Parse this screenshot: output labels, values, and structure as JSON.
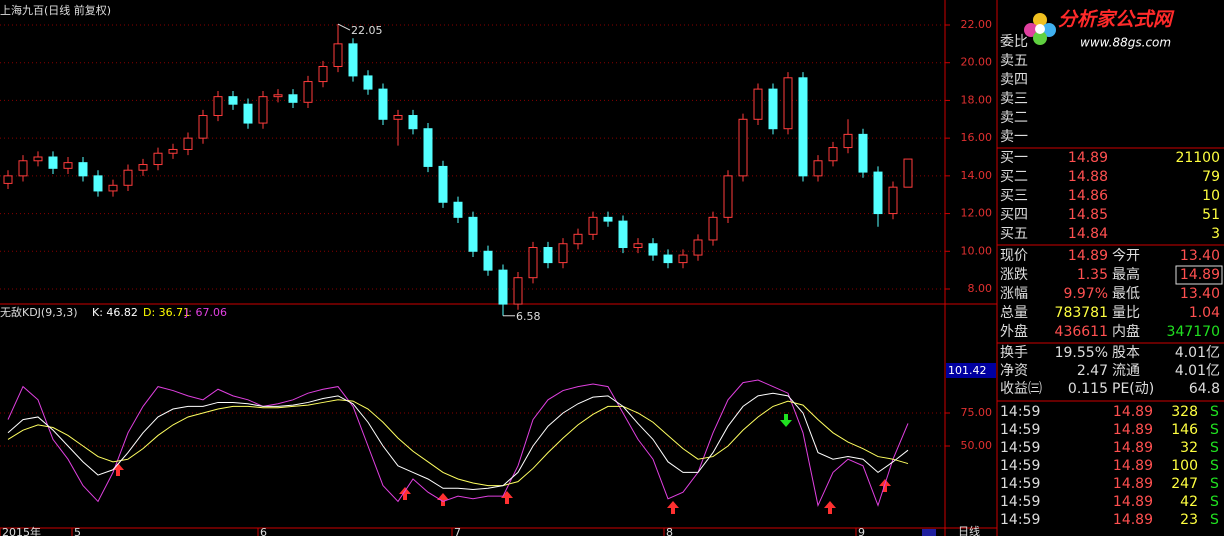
{
  "header": {
    "title": "上海九百(日线 前复权)"
  },
  "logo": {
    "name": "分析家公式网",
    "url": "www.88gs.com"
  },
  "price_chart": {
    "candles": {
      "open": [
        13.6,
        14.0,
        14.8,
        15.0,
        14.4,
        14.7,
        14.0,
        13.2,
        13.5,
        14.3,
        14.6,
        15.2,
        15.4,
        16.0,
        17.2,
        18.2,
        17.8,
        16.8,
        18.2,
        18.3,
        17.9,
        19.0,
        19.8,
        21.0,
        19.3,
        18.6,
        17.0,
        17.2,
        16.5,
        14.5,
        12.6,
        11.8,
        10.0,
        9.0,
        7.2,
        8.6,
        10.2,
        9.4,
        10.4,
        10.9,
        11.8,
        11.6,
        10.2,
        10.4,
        9.8,
        9.4,
        9.8,
        10.6,
        11.8,
        14.0,
        17.0,
        18.6,
        16.5,
        19.2,
        14.0,
        14.8,
        15.5,
        16.2,
        14.2,
        12.0,
        13.4
      ],
      "high": [
        14.3,
        15.1,
        15.3,
        15.3,
        15.0,
        15.0,
        14.3,
        13.8,
        14.6,
        14.9,
        15.5,
        15.7,
        16.3,
        17.5,
        18.5,
        18.5,
        18.1,
        18.5,
        18.6,
        18.6,
        19.3,
        20.1,
        22.05,
        21.3,
        19.6,
        18.9,
        17.5,
        17.5,
        16.8,
        14.8,
        12.9,
        12.1,
        10.3,
        9.3,
        8.9,
        10.5,
        10.5,
        10.7,
        11.2,
        12.1,
        12.1,
        11.9,
        10.7,
        10.7,
        10.1,
        10.1,
        10.9,
        12.1,
        14.3,
        17.3,
        18.9,
        18.9,
        19.5,
        19.5,
        15.1,
        15.8,
        17.0,
        16.5,
        14.5,
        13.7,
        14.89
      ],
      "low": [
        13.3,
        13.7,
        14.5,
        14.1,
        14.1,
        13.7,
        12.9,
        12.9,
        13.2,
        14.0,
        14.3,
        14.9,
        15.1,
        15.7,
        16.9,
        17.5,
        16.5,
        16.5,
        17.9,
        17.6,
        17.6,
        18.7,
        19.5,
        19.0,
        18.3,
        16.7,
        15.6,
        16.2,
        14.2,
        12.3,
        11.5,
        9.7,
        8.7,
        6.58,
        6.9,
        8.3,
        9.1,
        9.1,
        10.1,
        10.6,
        11.3,
        9.9,
        9.9,
        9.5,
        9.1,
        9.1,
        9.5,
        10.3,
        11.5,
        13.7,
        16.7,
        16.2,
        16.2,
        13.7,
        13.7,
        14.5,
        15.2,
        13.9,
        11.3,
        11.7,
        13.4
      ],
      "close": [
        14.0,
        14.8,
        15.0,
        14.4,
        14.7,
        14.0,
        13.2,
        13.5,
        14.3,
        14.6,
        15.2,
        15.4,
        16.0,
        17.2,
        18.2,
        17.8,
        16.8,
        18.2,
        18.3,
        17.9,
        19.0,
        19.8,
        21.0,
        19.3,
        18.6,
        17.0,
        17.2,
        16.5,
        14.5,
        12.6,
        11.8,
        10.0,
        9.0,
        7.2,
        8.6,
        10.2,
        9.4,
        10.4,
        10.9,
        11.8,
        11.6,
        10.2,
        10.4,
        9.8,
        9.4,
        9.8,
        10.6,
        11.8,
        14.0,
        17.0,
        18.6,
        16.5,
        19.2,
        14.0,
        14.8,
        15.5,
        16.2,
        14.2,
        12.0,
        13.4,
        14.89
      ]
    },
    "yticks": [
      {
        "value": 22,
        "label": "22.00"
      },
      {
        "value": 20,
        "label": "20.00"
      },
      {
        "value": 18,
        "label": "18.00"
      },
      {
        "value": 16,
        "label": "16.00"
      },
      {
        "value": 14,
        "label": "14.00"
      },
      {
        "value": 12,
        "label": "12.00"
      },
      {
        "value": 10,
        "label": "10.00"
      },
      {
        "value": 8,
        "label": "8.00"
      }
    ],
    "high_label": "22.05",
    "low_label": "6.58"
  },
  "kdj": {
    "title": "无敌KDJ(9,3,3)",
    "k_label": "K: 46.82",
    "d_label": "D: 36.71",
    "j_label": "J: 67.06",
    "current": "101.42",
    "k": [
      60,
      70,
      72,
      62,
      50,
      38,
      28,
      32,
      45,
      60,
      72,
      78,
      80,
      80,
      83,
      83,
      82,
      80,
      80,
      81,
      83,
      86,
      88,
      82,
      68,
      50,
      35,
      30,
      25,
      18,
      18,
      17,
      18,
      20,
      30,
      50,
      65,
      75,
      82,
      87,
      88,
      80,
      67,
      55,
      38,
      30,
      30,
      45,
      65,
      80,
      88,
      90,
      88,
      75,
      45,
      40,
      42,
      40,
      30,
      38,
      46.82
    ],
    "d": [
      55,
      62,
      66,
      64,
      58,
      50,
      42,
      38,
      40,
      48,
      58,
      66,
      72,
      75,
      78,
      80,
      80,
      79,
      79,
      80,
      81,
      83,
      85,
      84,
      78,
      68,
      56,
      46,
      38,
      30,
      25,
      22,
      20,
      20,
      23,
      33,
      45,
      56,
      66,
      74,
      80,
      80,
      75,
      68,
      58,
      48,
      40,
      42,
      50,
      62,
      72,
      80,
      84,
      81,
      70,
      60,
      53,
      48,
      42,
      40,
      36.71
    ],
    "j": [
      70,
      95,
      85,
      55,
      40,
      20,
      8,
      30,
      60,
      80,
      95,
      92,
      88,
      85,
      93,
      88,
      85,
      80,
      82,
      85,
      90,
      93,
      95,
      80,
      50,
      20,
      8,
      25,
      15,
      8,
      12,
      10,
      12,
      12,
      35,
      70,
      85,
      92,
      95,
      97,
      95,
      75,
      55,
      40,
      10,
      15,
      30,
      60,
      85,
      98,
      100,
      95,
      90,
      60,
      5,
      30,
      40,
      35,
      5,
      40,
      67.06
    ],
    "yticks": [
      {
        "value": 75,
        "label": "75.00"
      },
      {
        "value": 50,
        "label": "50.00"
      }
    ]
  },
  "dates": [
    "2015年",
    "5",
    "6",
    "7",
    "8",
    "9"
  ],
  "period": "日线",
  "quote": {
    "ratio_label": "委比",
    "sell": [
      "卖五",
      "卖四",
      "卖三",
      "卖二",
      "卖一"
    ],
    "buy": [
      [
        "买一",
        "14.89",
        "21100"
      ],
      [
        "买二",
        "14.88",
        "79"
      ],
      [
        "买三",
        "14.86",
        "10"
      ],
      [
        "买四",
        "14.85",
        "51"
      ],
      [
        "买五",
        "14.84",
        "3"
      ]
    ],
    "stats": [
      [
        "现价",
        "14.89",
        "今开",
        "13.40"
      ],
      [
        "涨跌",
        "1.35",
        "最高",
        "14.89"
      ],
      [
        "涨幅",
        "9.97%",
        "最低",
        "13.40"
      ],
      [
        "总量",
        "783781",
        "量比",
        "1.04"
      ],
      [
        "外盘",
        "436611",
        "内盘",
        "347170"
      ]
    ],
    "info": [
      [
        "换手",
        "19.55%",
        "股本",
        "4.01亿"
      ],
      [
        "净资",
        "2.47",
        "流通",
        "4.01亿"
      ],
      [
        "收益㈢",
        "0.115",
        "PE(动)",
        "64.8"
      ]
    ],
    "trades": [
      [
        "14:59",
        "14.89",
        "328",
        "S"
      ],
      [
        "14:59",
        "14.89",
        "146",
        "S"
      ],
      [
        "14:59",
        "14.89",
        "32",
        "S"
      ],
      [
        "14:59",
        "14.89",
        "100",
        "S"
      ],
      [
        "14:59",
        "14.89",
        "247",
        "S"
      ],
      [
        "14:59",
        "14.89",
        "42",
        "S"
      ],
      [
        "14:59",
        "14.89",
        "23",
        "S"
      ]
    ]
  }
}
